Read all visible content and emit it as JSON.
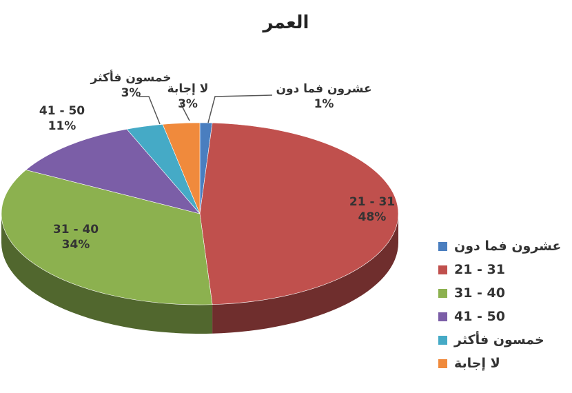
{
  "chart_data": {
    "type": "pie",
    "title": "العمر",
    "categories": [
      "عشرون فما دون",
      "21 - 31",
      "31 - 40",
      "41 - 50",
      "خمسون فأكثر",
      "لا إجابة"
    ],
    "values": [
      1,
      48,
      34,
      11,
      3,
      3
    ],
    "value_labels": [
      "1%",
      "48%",
      "34%",
      "11%",
      "3%",
      "3%"
    ],
    "colors": [
      "#4a7ebf",
      "#c0504d",
      "#8cb14f",
      "#7b5ea7",
      "#45aac6",
      "#f08a3c"
    ],
    "legend_position": "right"
  }
}
